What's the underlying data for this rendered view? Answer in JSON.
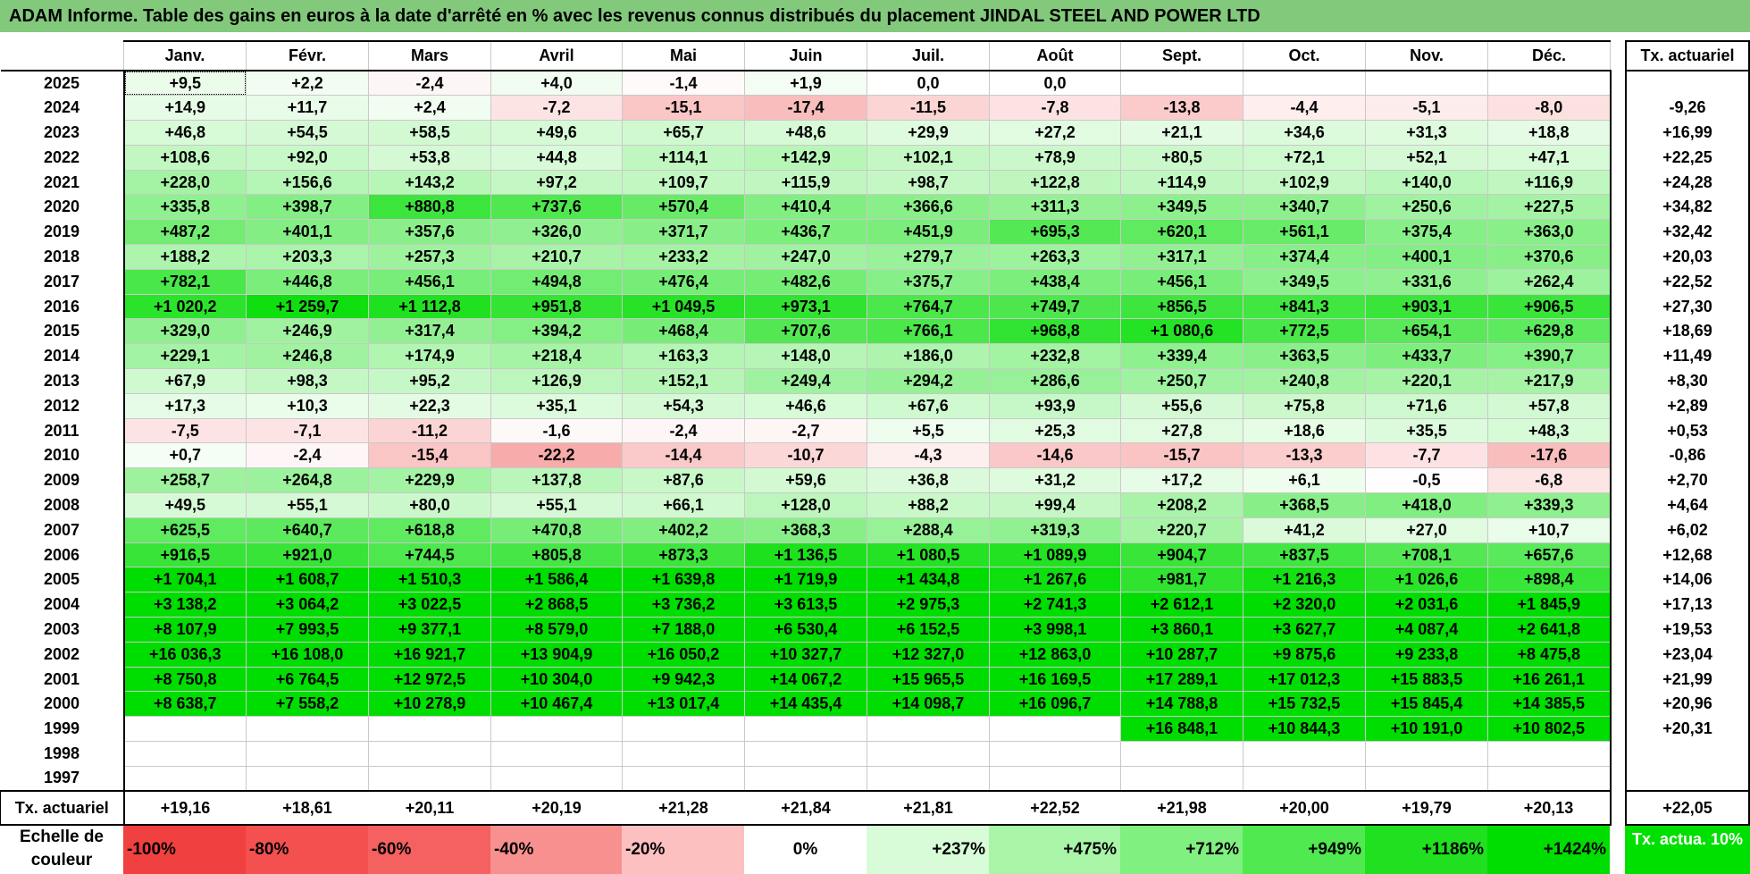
{
  "title": "ADAM Informe. Table des gains en euros à la date d'arrêté en % avec les revenus connus distribués du placement JINDAL STEEL AND POWER LTD",
  "months": [
    "Janv.",
    "Févr.",
    "Mars",
    "Avril",
    "Mai",
    "Juin",
    "Juil.",
    "Août",
    "Sept.",
    "Oct.",
    "Nov.",
    "Déc."
  ],
  "actuarial_header": "Tx. actuariel",
  "rows": [
    {
      "year": "2025",
      "values": [
        "+9,5",
        "+2,2",
        "-2,4",
        "+4,0",
        "-1,4",
        "+1,9",
        "0,0",
        "0,0",
        "",
        "",
        "",
        ""
      ],
      "rate": ""
    },
    {
      "year": "2024",
      "values": [
        "+14,9",
        "+11,7",
        "+2,4",
        "-7,2",
        "-15,1",
        "-17,4",
        "-11,5",
        "-7,8",
        "-13,8",
        "-4,4",
        "-5,1",
        "-8,0"
      ],
      "rate": "-9,26"
    },
    {
      "year": "2023",
      "values": [
        "+46,8",
        "+54,5",
        "+58,5",
        "+49,6",
        "+65,7",
        "+48,6",
        "+29,9",
        "+27,2",
        "+21,1",
        "+34,6",
        "+31,3",
        "+18,8"
      ],
      "rate": "+16,99"
    },
    {
      "year": "2022",
      "values": [
        "+108,6",
        "+92,0",
        "+53,8",
        "+44,8",
        "+114,1",
        "+142,9",
        "+102,1",
        "+78,9",
        "+80,5",
        "+72,1",
        "+52,1",
        "+47,1"
      ],
      "rate": "+22,25"
    },
    {
      "year": "2021",
      "values": [
        "+228,0",
        "+156,6",
        "+143,2",
        "+97,2",
        "+109,7",
        "+115,9",
        "+98,7",
        "+122,8",
        "+114,9",
        "+102,9",
        "+140,0",
        "+116,9"
      ],
      "rate": "+24,28"
    },
    {
      "year": "2020",
      "values": [
        "+335,8",
        "+398,7",
        "+880,8",
        "+737,6",
        "+570,4",
        "+410,4",
        "+366,6",
        "+311,3",
        "+349,5",
        "+340,7",
        "+250,6",
        "+227,5"
      ],
      "rate": "+34,82"
    },
    {
      "year": "2019",
      "values": [
        "+487,2",
        "+401,1",
        "+357,6",
        "+326,0",
        "+371,7",
        "+436,7",
        "+451,9",
        "+695,3",
        "+620,1",
        "+561,1",
        "+375,4",
        "+363,0"
      ],
      "rate": "+32,42"
    },
    {
      "year": "2018",
      "values": [
        "+188,2",
        "+203,3",
        "+257,3",
        "+210,7",
        "+233,2",
        "+247,0",
        "+279,7",
        "+263,3",
        "+317,1",
        "+374,4",
        "+400,1",
        "+370,6"
      ],
      "rate": "+20,03"
    },
    {
      "year": "2017",
      "values": [
        "+782,1",
        "+446,8",
        "+456,1",
        "+494,8",
        "+476,4",
        "+482,6",
        "+375,7",
        "+438,4",
        "+456,1",
        "+349,5",
        "+331,6",
        "+262,4"
      ],
      "rate": "+22,52"
    },
    {
      "year": "2016",
      "values": [
        "+1 020,2",
        "+1 259,7",
        "+1 112,8",
        "+951,8",
        "+1 049,5",
        "+973,1",
        "+764,7",
        "+749,7",
        "+856,5",
        "+841,3",
        "+903,1",
        "+906,5"
      ],
      "rate": "+27,30"
    },
    {
      "year": "2015",
      "values": [
        "+329,0",
        "+246,9",
        "+317,4",
        "+394,2",
        "+468,4",
        "+707,6",
        "+766,1",
        "+968,8",
        "+1 080,6",
        "+772,5",
        "+654,1",
        "+629,8"
      ],
      "rate": "+18,69"
    },
    {
      "year": "2014",
      "values": [
        "+229,1",
        "+246,8",
        "+174,9",
        "+218,4",
        "+163,3",
        "+148,0",
        "+186,0",
        "+232,8",
        "+339,4",
        "+363,5",
        "+433,7",
        "+390,7"
      ],
      "rate": "+11,49"
    },
    {
      "year": "2013",
      "values": [
        "+67,9",
        "+98,3",
        "+95,2",
        "+126,9",
        "+152,1",
        "+249,4",
        "+294,2",
        "+286,6",
        "+250,7",
        "+240,8",
        "+220,1",
        "+217,9"
      ],
      "rate": "+8,30"
    },
    {
      "year": "2012",
      "values": [
        "+17,3",
        "+10,3",
        "+22,3",
        "+35,1",
        "+54,3",
        "+46,6",
        "+67,6",
        "+93,9",
        "+55,6",
        "+75,8",
        "+71,6",
        "+57,8"
      ],
      "rate": "+2,89"
    },
    {
      "year": "2011",
      "values": [
        "-7,5",
        "-7,1",
        "-11,2",
        "-1,6",
        "-2,4",
        "-2,7",
        "+5,5",
        "+25,3",
        "+27,8",
        "+18,6",
        "+35,5",
        "+48,3"
      ],
      "rate": "+0,53"
    },
    {
      "year": "2010",
      "values": [
        "+0,7",
        "-2,4",
        "-15,4",
        "-22,2",
        "-14,4",
        "-10,7",
        "-4,3",
        "-14,6",
        "-15,7",
        "-13,3",
        "-7,7",
        "-17,6"
      ],
      "rate": "-0,86"
    },
    {
      "year": "2009",
      "values": [
        "+258,7",
        "+264,8",
        "+229,9",
        "+137,8",
        "+87,6",
        "+59,6",
        "+36,8",
        "+31,2",
        "+17,2",
        "+6,1",
        "-0,5",
        "-6,8"
      ],
      "rate": "+2,70"
    },
    {
      "year": "2008",
      "values": [
        "+49,5",
        "+55,1",
        "+80,0",
        "+55,1",
        "+66,1",
        "+128,0",
        "+88,2",
        "+99,4",
        "+208,2",
        "+368,5",
        "+418,0",
        "+339,3"
      ],
      "rate": "+4,64"
    },
    {
      "year": "2007",
      "values": [
        "+625,5",
        "+640,7",
        "+618,8",
        "+470,8",
        "+402,2",
        "+368,3",
        "+288,4",
        "+319,3",
        "+220,7",
        "+41,2",
        "+27,0",
        "+10,7"
      ],
      "rate": "+6,02"
    },
    {
      "year": "2006",
      "values": [
        "+916,5",
        "+921,0",
        "+744,5",
        "+805,8",
        "+873,3",
        "+1 136,5",
        "+1 080,5",
        "+1 089,9",
        "+904,7",
        "+837,5",
        "+708,1",
        "+657,6"
      ],
      "rate": "+12,68"
    },
    {
      "year": "2005",
      "values": [
        "+1 704,1",
        "+1 608,7",
        "+1 510,3",
        "+1 586,4",
        "+1 639,8",
        "+1 719,9",
        "+1 434,8",
        "+1 267,6",
        "+981,7",
        "+1 216,3",
        "+1 026,6",
        "+898,4"
      ],
      "rate": "+14,06"
    },
    {
      "year": "2004",
      "values": [
        "+3 138,2",
        "+3 064,2",
        "+3 022,5",
        "+2 868,5",
        "+3 736,2",
        "+3 613,5",
        "+2 975,3",
        "+2 741,3",
        "+2 612,1",
        "+2 320,0",
        "+2 031,6",
        "+1 845,9"
      ],
      "rate": "+17,13"
    },
    {
      "year": "2003",
      "values": [
        "+8 107,9",
        "+7 993,5",
        "+9 377,1",
        "+8 579,0",
        "+7 188,0",
        "+6 530,4",
        "+6 152,5",
        "+3 998,1",
        "+3 860,1",
        "+3 627,7",
        "+4 087,4",
        "+2 641,8"
      ],
      "rate": "+19,53"
    },
    {
      "year": "2002",
      "values": [
        "+16 036,3",
        "+16 108,0",
        "+16 921,7",
        "+13 904,9",
        "+16 050,2",
        "+10 327,7",
        "+12 327,0",
        "+12 863,0",
        "+10 287,7",
        "+9 875,6",
        "+9 233,8",
        "+8 475,8"
      ],
      "rate": "+23,04"
    },
    {
      "year": "2001",
      "values": [
        "+8 750,8",
        "+6 764,5",
        "+12 972,5",
        "+10 304,0",
        "+9 942,3",
        "+14 067,2",
        "+15 965,5",
        "+16 169,5",
        "+17 289,1",
        "+17 012,3",
        "+15 883,5",
        "+16 261,1"
      ],
      "rate": "+21,99"
    },
    {
      "year": "2000",
      "values": [
        "+8 638,7",
        "+7 558,2",
        "+10 278,9",
        "+10 467,4",
        "+13 017,4",
        "+14 435,4",
        "+14 098,7",
        "+16 096,7",
        "+14 788,8",
        "+15 732,5",
        "+15 845,4",
        "+14 385,5"
      ],
      "rate": "+20,96"
    },
    {
      "year": "1999",
      "values": [
        "",
        "",
        "",
        "",
        "",
        "",
        "",
        "",
        "+16 848,1",
        "+10 844,3",
        "+10 191,0",
        "+10 802,5"
      ],
      "rate": "+20,31"
    },
    {
      "year": "1998",
      "values": [
        "",
        "",
        "",
        "",
        "",
        "",
        "",
        "",
        "",
        "",
        "",
        ""
      ],
      "rate": ""
    },
    {
      "year": "1997",
      "values": [
        "",
        "",
        "",
        "",
        "",
        "",
        "",
        "",
        "",
        "",
        "",
        ""
      ],
      "rate": ""
    }
  ],
  "footer": {
    "label": "Tx. actuariel",
    "values": [
      "+19,16",
      "+18,61",
      "+20,11",
      "+20,19",
      "+21,28",
      "+21,84",
      "+21,81",
      "+22,52",
      "+21,98",
      "+20,00",
      "+19,79",
      "+20,13"
    ],
    "overall": "+22,05"
  },
  "scale": {
    "label": "Echelle de couleur",
    "steps": [
      {
        "label": "-100%",
        "color": "#f04040"
      },
      {
        "label": "-80%",
        "color": "#f45050"
      },
      {
        "label": "-60%",
        "color": "#f56060"
      },
      {
        "label": "-40%",
        "color": "#f89090"
      },
      {
        "label": "-20%",
        "color": "#fcc0c0"
      },
      {
        "label": "0%",
        "color": "#ffffff"
      },
      {
        "label": "+237%",
        "color": "#d8fcd8"
      },
      {
        "label": "+475%",
        "color": "#a8f5a8"
      },
      {
        "label": "+712%",
        "color": "#80f080"
      },
      {
        "label": "+949%",
        "color": "#50ea50"
      },
      {
        "label": "+1186%",
        "color": "#20e020"
      },
      {
        "label": "+1424%",
        "color": "#00dd00"
      }
    ],
    "actuarial_label": "Tx. actua. 10%"
  }
}
